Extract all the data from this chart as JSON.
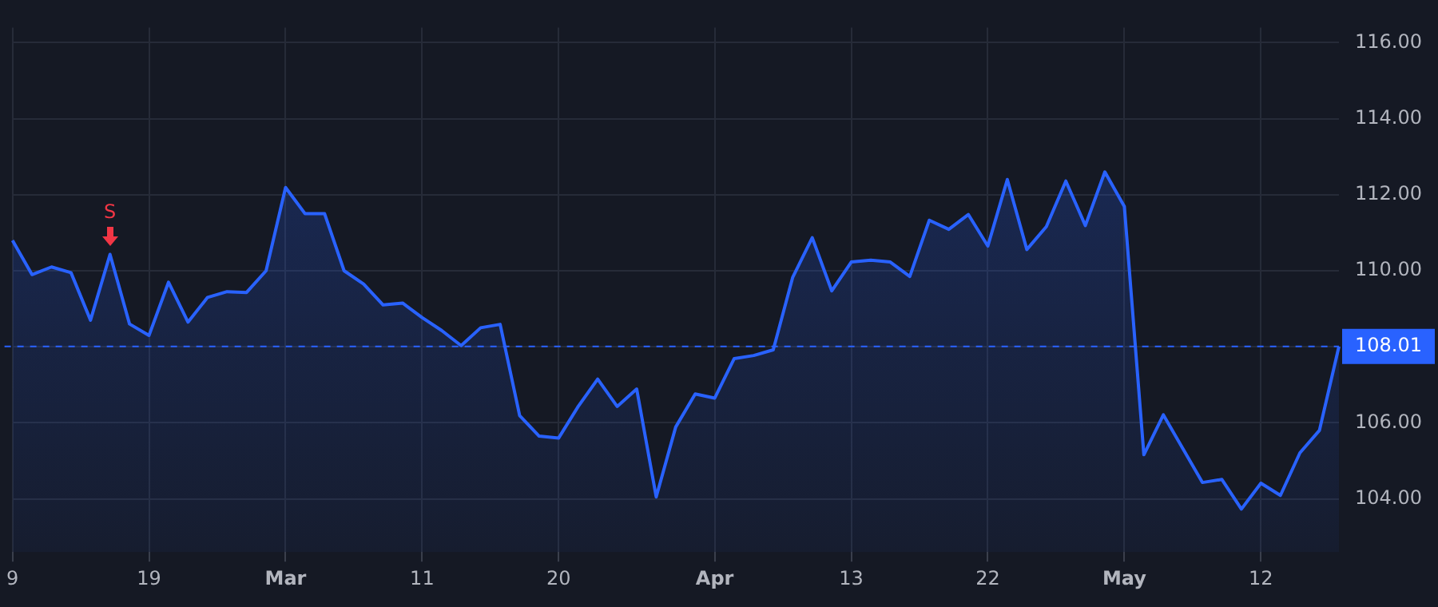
{
  "chart_data": {
    "type": "area",
    "categories": [
      "9",
      null,
      null,
      null,
      null,
      null,
      null,
      "19",
      null,
      null,
      null,
      null,
      null,
      null,
      "Mar",
      null,
      null,
      null,
      null,
      null,
      null,
      "11",
      null,
      null,
      null,
      null,
      null,
      null,
      "20",
      null,
      null,
      null,
      null,
      null,
      null,
      null,
      "Apr",
      null,
      null,
      null,
      null,
      null,
      null,
      "13",
      null,
      null,
      null,
      null,
      null,
      null,
      "22",
      null,
      null,
      null,
      null,
      null,
      null,
      "May",
      null,
      null,
      null,
      null,
      null,
      null,
      "12",
      null,
      null,
      null,
      null
    ],
    "series": [
      {
        "color": "#2962ff",
        "values": [
          110.8,
          109.9,
          110.1,
          109.95,
          108.7,
          110.43,
          108.6,
          108.3,
          109.7,
          108.65,
          109.3,
          109.45,
          109.43,
          110.0,
          112.19,
          111.5,
          111.5,
          110.0,
          109.65,
          109.1,
          109.15,
          108.77,
          108.43,
          108.03,
          108.5,
          108.59,
          106.19,
          105.65,
          105.6,
          106.43,
          107.15,
          106.43,
          106.89,
          104.05,
          105.89,
          106.76,
          106.65,
          107.69,
          107.77,
          107.92,
          109.83,
          110.87,
          109.47,
          110.23,
          110.28,
          110.23,
          109.85,
          111.33,
          111.09,
          111.48,
          110.65,
          112.4,
          110.56,
          111.16,
          112.36,
          111.19,
          112.6,
          111.69,
          105.16,
          106.21,
          105.32,
          104.43,
          104.51,
          103.73,
          104.41,
          104.09,
          105.21,
          105.8,
          108.01
        ]
      }
    ],
    "ylim": [
      102.6,
      116.4
    ],
    "yticks": [
      {
        "value": 104,
        "label": "104.00"
      },
      {
        "value": 106,
        "label": "106.00"
      },
      {
        "value": 108,
        "label": null
      },
      {
        "value": 110,
        "label": "110.00"
      },
      {
        "value": 112,
        "label": "112.00"
      },
      {
        "value": 114,
        "label": "114.00"
      },
      {
        "value": 116,
        "label": "116.00"
      }
    ],
    "ref_lines": [
      {
        "axis": "y",
        "value": 108.01,
        "label": "108.01",
        "color": "#2962ff",
        "line_style": "dashed"
      }
    ],
    "annotations": [
      {
        "text": "S",
        "y": 110.43
      }
    ],
    "grid": true,
    "legend": false,
    "marker": "none",
    "line_style": "solid"
  }
}
